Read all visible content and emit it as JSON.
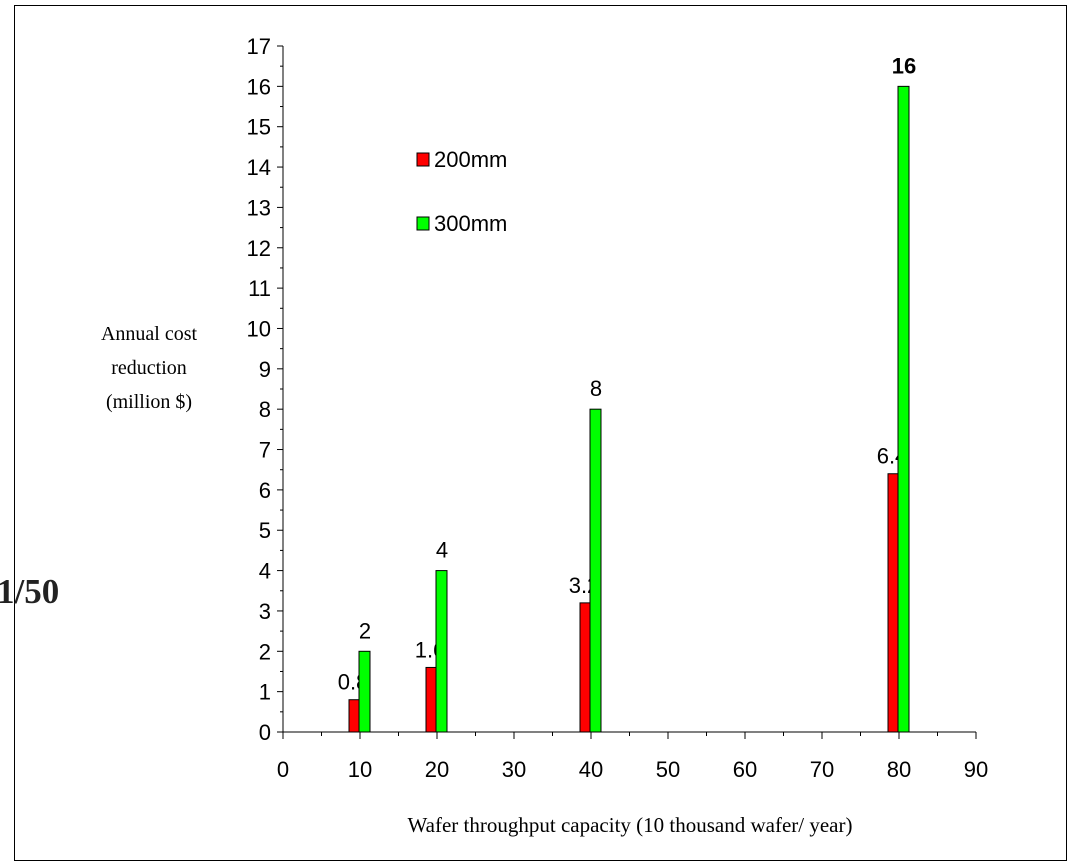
{
  "side_text": "1/50",
  "chart_data": {
    "type": "bar",
    "title": "",
    "xlabel": "Wafer throughput capacity (10 thousand wafer/ year)",
    "ylabel_lines": [
      "Annual cost",
      "reduction",
      "(million $)"
    ],
    "xlim": [
      0,
      90
    ],
    "ylim": [
      0,
      17
    ],
    "x_ticks": [
      0,
      10,
      20,
      30,
      40,
      50,
      60,
      70,
      80,
      90
    ],
    "y_ticks": [
      0,
      1,
      2,
      3,
      4,
      5,
      6,
      7,
      8,
      9,
      10,
      11,
      12,
      13,
      14,
      15,
      16,
      17
    ],
    "grid": false,
    "legend_position": "top-left",
    "x": [
      10,
      20,
      40,
      80
    ],
    "series": [
      {
        "name": "200mm",
        "color": "#ff0000",
        "values": [
          0.8,
          1.6,
          3.2,
          6.4
        ],
        "labels": [
          "0.8",
          "1.6",
          "3.2",
          "6.4"
        ]
      },
      {
        "name": "300mm",
        "color": "#00ff00",
        "values": [
          2,
          4,
          8,
          16
        ],
        "labels": [
          "2",
          "4",
          "8",
          "16"
        ]
      }
    ]
  }
}
